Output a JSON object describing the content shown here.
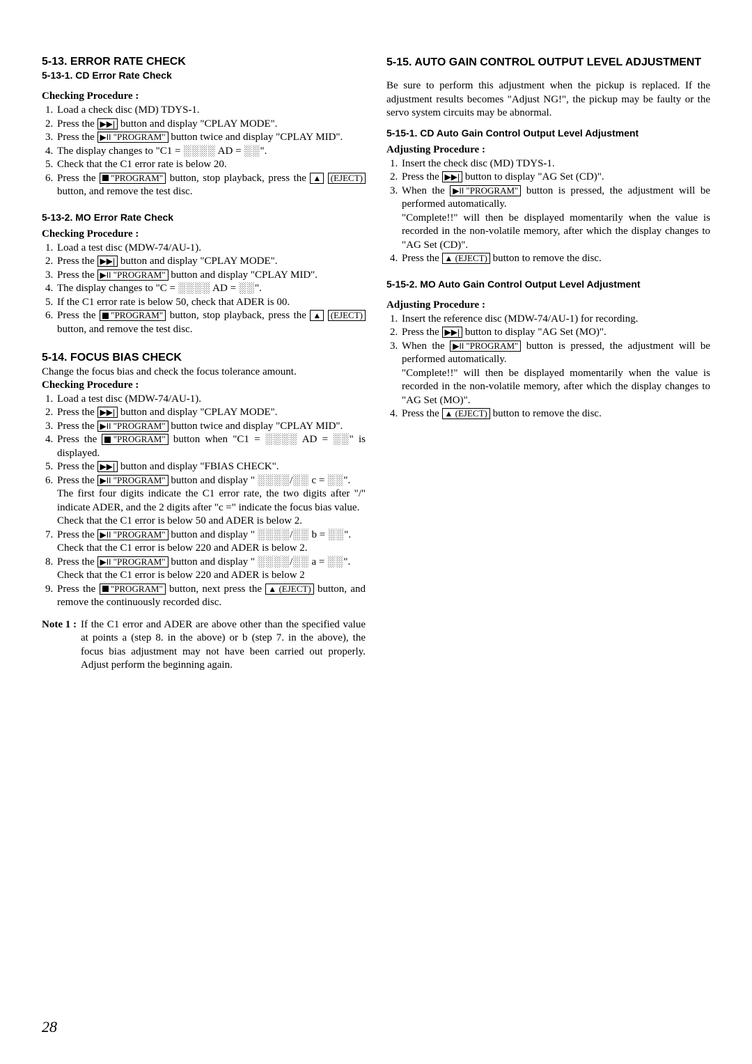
{
  "left": {
    "s513_title": "5-13. ERROR RATE CHECK",
    "s5131_title": "5-13-1. CD Error Rate Check",
    "checking": "Checking Procedure :",
    "s5131_items": [
      "Load a check disc (MD) TDYS-1.",
      "Press the {NEXT} button and display \"CPLAY MODE\".",
      "Press the {PLAYPROG} button twice and display \"CPLAY MID\".",
      "The display changes to \"C1 = {DOTS4} AD = {DOTS2}\".",
      "Check that the C1 error rate is below 20.",
      "Press the {STOPPROG} button, stop playback, press the {EJECT2} button, and remove the test disc."
    ],
    "s5132_title": "5-13-2. MO Error Rate Check",
    "s5132_items": [
      "Load a test disc (MDW-74/AU-1).",
      "Press the {NEXT} button and display \"CPLAY MODE\".",
      "Press the {PLAYPROG} button and display \"CPLAY MID\".",
      "The display changes to \"C = {DOTS4} AD = {DOTS2}\".",
      "If the C1 error rate is below 50, check that ADER is 00.",
      "Press the {STOPPROG} button, stop playback, press the {EJECT2} button, and remove the test disc."
    ],
    "s514_title": "5-14. FOCUS BIAS CHECK",
    "s514_intro": "Change the focus bias and check the focus tolerance amount.",
    "s514_items": [
      "Load a test disc (MDW-74/AU-1).",
      "Press the {NEXT} button and display \"CPLAY MODE\".",
      "Press the {PLAYPROG} button twice and display \"CPLAY MID\".",
      "Press the {STOPPROG} button when \"C1 = {DOTS4} AD = {DOTS2}\" is displayed.",
      "Press the {NEXT} button and display \"FBIAS CHECK\".",
      "Press the {PLAYPROG} button and display \" {DOTS4}/{DOTS2} c = {DOTS2}\".{P6A}{P6B}",
      "Press the {PLAYPROG} button and display \" {DOTS4}/{DOTS2} b = {DOTS2}\".{P7A}",
      "Press the {PLAYPROG} button and display \" {DOTS4}/{DOTS2} a = {DOTS2}\".{P8A}",
      "Press the {STOPPROG} button, next press the {EJECTFULL} button, and remove the continuously recorded disc."
    ],
    "s514_p6a": "The first four digits indicate the C1 error rate, the two digits after \"/\" indicate ADER, and the 2 digits after \"c =\" indicate the focus bias value.",
    "s514_p6b": "Check that the C1 error is below 50 and ADER is below 2.",
    "s514_p7a": "Check that the C1 error is below 220 and ADER is below 2.",
    "s514_p8a": "Check that the C1 error is below 220 and ADER is below 2",
    "note_label": "Note 1 :",
    "note_body": "If the C1 error and ADER are above other than the specified value at points a (step 8. in the above) or b (step 7. in the above), the focus bias adjustment may not have been carried out properly. Adjust perform the beginning again."
  },
  "right": {
    "s515_title": "5-15.  AUTO GAIN CONTROL OUTPUT LEVEL ADJUSTMENT",
    "s515_intro": "Be sure to perform this adjustment when the pickup is replaced. If the adjustment results becomes \"Adjust NG!\", the pickup may be faulty or the servo system circuits may be abnormal.",
    "s5151_title": "5-15-1. CD Auto Gain Control Output Level Adjustment",
    "adjusting": "Adjusting Procedure :",
    "s5151_items": [
      "Insert the check disc (MD) TDYS-1.",
      "Press the {NEXT} button to display \"AG Set (CD)\".",
      "When the {PLAYPROG} button is pressed, the adjustment will be performed automatically.{R3A}",
      "Press the {EJECTFULL} button to remove the disc."
    ],
    "s5151_r3a": "\"Complete!!\" will then be displayed momentarily when the value is recorded in the non-volatile memory, after which the display changes to \"AG Set (CD)\".",
    "s5152_title": "5-15-2. MO Auto Gain Control Output Level Adjustment",
    "s5152_items": [
      "Insert the reference disc (MDW-74/AU-1) for recording.",
      "Press the {NEXT} button to display \"AG Set (MO)\".",
      "When the {PLAYPROG} button is pressed, the adjustment will be performed automatically.{R3B}",
      "Press the {EJECTFULL} button to remove the disc."
    ],
    "s5152_r3b": "\"Complete!!\" will then be displayed momentarily when the value is recorded in the non-volatile memory, after which the display changes to \"AG Set (MO)\"."
  },
  "icons": {
    "next": "▶▶|",
    "playpause": "▶II",
    "eject": "▲",
    "program": "\"PROGRAM\"",
    "eject_word": "(EJECT)"
  },
  "dots4": "░░░░",
  "dots2": "░░",
  "page_num": "28"
}
